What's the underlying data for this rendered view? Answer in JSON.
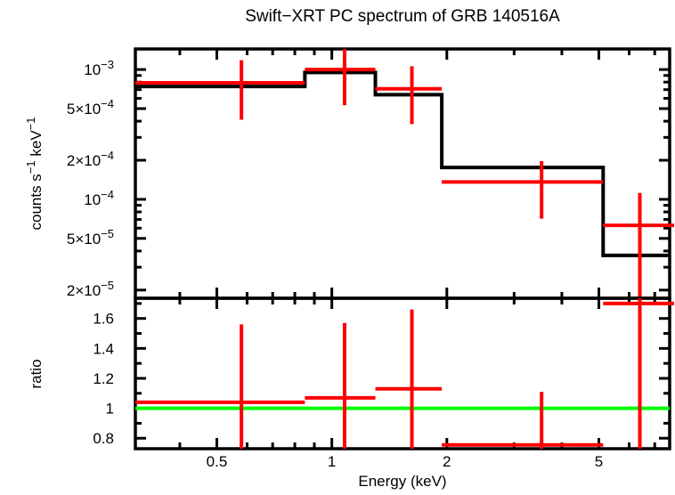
{
  "chart_data": {
    "type": "line",
    "title": "Swift−XRT PC spectrum of GRB 140516A",
    "xlabel": "Energy (keV)",
    "legend": "none",
    "grid": false,
    "colors": {
      "data": "#ff0000",
      "model": "#000000",
      "reference": "#00ff00",
      "frame": "#000000",
      "background": "#ffffff"
    },
    "x_axis": {
      "scale": "log",
      "range": [
        0.306,
        7.66
      ],
      "major_ticks": [
        {
          "value": 0.5,
          "label": "0.5"
        },
        {
          "value": 1,
          "label": "1"
        },
        {
          "value": 2,
          "label": "2"
        },
        {
          "value": 5,
          "label": "5"
        }
      ],
      "minor_ticks": [
        0.4,
        0.6,
        0.7,
        0.8,
        0.9,
        3,
        4,
        6,
        7
      ]
    },
    "panels": [
      {
        "id": "spectrum",
        "ylabel": "counts s−1 keV−1",
        "ylabel_parts": [
          {
            "t": "counts s"
          },
          {
            "t": "−1",
            "sup": true
          },
          {
            "t": " keV"
          },
          {
            "t": "−1",
            "sup": true
          }
        ],
        "y_axis": {
          "scale": "log",
          "range": [
            1.73e-05,
            0.00144
          ],
          "major_ticks": [
            {
              "value": 0.001,
              "parts": [
                {
                  "t": "10"
                },
                {
                  "t": "−3",
                  "sup": true
                }
              ]
            },
            {
              "value": 0.0005,
              "parts": [
                {
                  "t": "5×10"
                },
                {
                  "t": "−4",
                  "sup": true
                }
              ]
            },
            {
              "value": 0.0002,
              "parts": [
                {
                  "t": "2×10"
                },
                {
                  "t": "−4",
                  "sup": true
                }
              ]
            },
            {
              "value": 0.0001,
              "parts": [
                {
                  "t": "10"
                },
                {
                  "t": "−4",
                  "sup": true
                }
              ]
            },
            {
              "value": 5e-05,
              "parts": [
                {
                  "t": "5×10"
                },
                {
                  "t": "−5",
                  "sup": true
                }
              ]
            },
            {
              "value": 2e-05,
              "parts": [
                {
                  "t": "2×10"
                },
                {
                  "t": "−5",
                  "sup": true
                }
              ]
            }
          ],
          "minor_ticks": [
            0.0009,
            0.0008,
            0.0007,
            0.0006,
            0.0004,
            0.0003,
            9e-05,
            8e-05,
            7e-05,
            6e-05,
            4e-05,
            3e-05
          ]
        },
        "model": {
          "name": "folded-model",
          "bin_edges": [
            0.306,
            0.85,
            1.3,
            1.94,
            5.13,
            7.66
          ],
          "values": [
            0.00074,
            0.00095,
            0.00064,
            0.000176,
            3.7e-05
          ]
        },
        "data": {
          "name": "observed-spectrum",
          "points": [
            {
              "x": 0.58,
              "x_lo": 0.306,
              "x_hi": 0.85,
              "y": 0.00079,
              "y_lo": 0.00041,
              "y_hi": 0.00118
            },
            {
              "x": 1.08,
              "x_lo": 0.85,
              "x_hi": 1.3,
              "y": 0.001,
              "y_lo": 0.00053,
              "y_hi": 0.00145
            },
            {
              "x": 1.62,
              "x_lo": 1.3,
              "x_hi": 1.94,
              "y": 0.00071,
              "y_lo": 0.00038,
              "y_hi": 0.00106
            },
            {
              "x": 3.54,
              "x_lo": 1.94,
              "x_hi": 5.13,
              "y": 0.000136,
              "y_lo": 7.1e-05,
              "y_hi": 0.000197
            },
            {
              "x": 6.4,
              "x_lo": 5.13,
              "x_hi": 7.9,
              "y": 6.3e-05,
              "y_lo": 1.6e-05,
              "y_hi": 0.000112
            }
          ]
        }
      },
      {
        "id": "ratio",
        "ylabel": "ratio",
        "y_axis": {
          "scale": "linear",
          "range": [
            0.73,
            1.735
          ],
          "major_ticks": [
            {
              "value": 0.8,
              "label": "0.8"
            },
            {
              "value": 1,
              "label": "1"
            },
            {
              "value": 1.2,
              "label": "1.2"
            },
            {
              "value": 1.4,
              "label": "1.4"
            },
            {
              "value": 1.6,
              "label": "1.6"
            }
          ],
          "minor_ticks": [
            0.9,
            1.1,
            1.3,
            1.5,
            1.7
          ]
        },
        "reference_line": {
          "y": 1,
          "color": "#00ff00"
        },
        "data": {
          "name": "data-to-model-ratio",
          "points": [
            {
              "x": 0.58,
              "x_lo": 0.306,
              "x_hi": 0.85,
              "y": 1.04,
              "y_lo": 0.7,
              "y_hi": 1.56
            },
            {
              "x": 1.08,
              "x_lo": 0.85,
              "x_hi": 1.3,
              "y": 1.07,
              "y_lo": 0.7,
              "y_hi": 1.57
            },
            {
              "x": 1.62,
              "x_lo": 1.3,
              "x_hi": 1.94,
              "y": 1.13,
              "y_lo": 0.7,
              "y_hi": 1.66
            },
            {
              "x": 3.54,
              "x_lo": 1.94,
              "x_hi": 5.13,
              "y": 0.755,
              "y_lo": 0.7,
              "y_hi": 1.11
            },
            {
              "x": 6.4,
              "x_lo": 5.13,
              "x_hi": 7.9,
              "y": 1.7,
              "y_lo": 0.7,
              "y_hi": 1.8
            }
          ]
        }
      }
    ]
  }
}
